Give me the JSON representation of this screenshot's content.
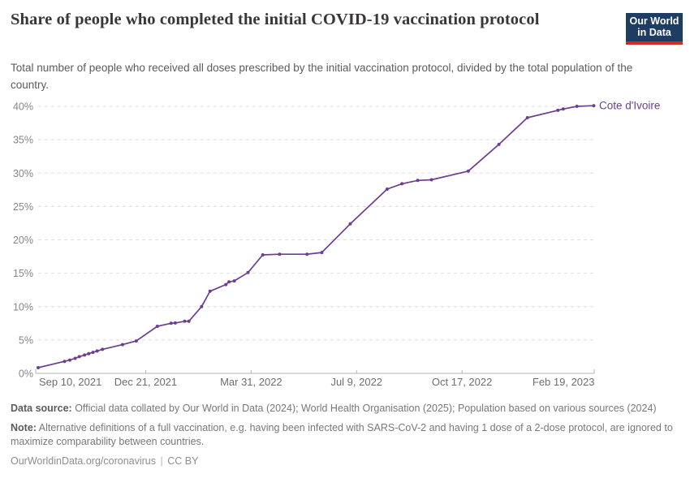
{
  "header": {
    "title": "Share of people who completed the initial COVID-19 vaccination protocol",
    "subtitle": "Total number of people who received all doses prescribed by the initial vaccination protocol, divided by the total population of the country.",
    "logo": {
      "line1": "Our World",
      "line2": "in Data",
      "bg_color": "#1d3d63",
      "accent_color": "#d42b21"
    }
  },
  "chart_data": {
    "type": "line",
    "title": "Share of people who completed the initial COVID-19 vaccination protocol",
    "x_axis": {
      "range_dates": [
        "2021-09-10",
        "2023-02-19"
      ],
      "ticks": [
        {
          "label": "Sep 10, 2021",
          "date": "2021-09-10"
        },
        {
          "label": "Dec 21, 2021",
          "date": "2021-12-21"
        },
        {
          "label": "Mar 31, 2022",
          "date": "2022-03-31"
        },
        {
          "label": "Jul 9, 2022",
          "date": "2022-07-09"
        },
        {
          "label": "Oct 17, 2022",
          "date": "2022-10-17"
        },
        {
          "label": "Feb 19, 2023",
          "date": "2023-02-19"
        }
      ]
    },
    "y_axis": {
      "range": [
        0,
        40
      ],
      "ticks": [
        "0%",
        "5%",
        "10%",
        "15%",
        "20%",
        "25%",
        "30%",
        "35%",
        "40%"
      ],
      "grid": "dashed"
    },
    "series": [
      {
        "name": "Cote d'Ivoire",
        "color": "#6d3e91",
        "points": [
          [
            "2021-09-10",
            0.85
          ],
          [
            "2021-10-05",
            1.8
          ],
          [
            "2021-10-10",
            2.0
          ],
          [
            "2021-10-15",
            2.25
          ],
          [
            "2021-10-19",
            2.5
          ],
          [
            "2021-10-24",
            2.75
          ],
          [
            "2021-10-28",
            2.95
          ],
          [
            "2021-11-01",
            3.15
          ],
          [
            "2021-11-05",
            3.35
          ],
          [
            "2021-11-10",
            3.6
          ],
          [
            "2021-11-29",
            4.3
          ],
          [
            "2021-12-12",
            4.85
          ],
          [
            "2022-01-01",
            7.05
          ],
          [
            "2022-01-14",
            7.5
          ],
          [
            "2022-01-18",
            7.55
          ],
          [
            "2022-01-27",
            7.8
          ],
          [
            "2022-01-31",
            7.8
          ],
          [
            "2022-02-12",
            10.0
          ],
          [
            "2022-02-20",
            12.3
          ],
          [
            "2022-03-07",
            13.3
          ],
          [
            "2022-03-10",
            13.7
          ],
          [
            "2022-03-15",
            13.85
          ],
          [
            "2022-03-28",
            15.1
          ],
          [
            "2022-04-11",
            17.75
          ],
          [
            "2022-04-27",
            17.85
          ],
          [
            "2022-05-23",
            17.85
          ],
          [
            "2022-06-06",
            18.1
          ],
          [
            "2022-07-03",
            22.4
          ],
          [
            "2022-08-07",
            27.6
          ],
          [
            "2022-08-21",
            28.4
          ],
          [
            "2022-09-05",
            28.9
          ],
          [
            "2022-09-18",
            29.0
          ],
          [
            "2022-10-23",
            30.3
          ],
          [
            "2022-11-21",
            34.3
          ],
          [
            "2022-12-18",
            38.3
          ],
          [
            "2023-01-16",
            39.4
          ],
          [
            "2023-01-21",
            39.6
          ],
          [
            "2023-02-03",
            40.0
          ],
          [
            "2023-02-19",
            40.1
          ]
        ]
      }
    ],
    "legend_position": "end-of-line",
    "colors": {
      "line": "#6d3e91",
      "grid": "#dddddd",
      "axis": "#b3b3b3",
      "y_label": "#858585",
      "x_label": "#6e6e6e"
    }
  },
  "footer": {
    "data_source_label": "Data source:",
    "data_source_text": " Official data collated by Our World in Data (2024); World Health Organisation (2025); Population based on various sources (2024)",
    "note_label": "Note:",
    "note_text": " Alternative definitions of a full vaccination, e.g. having been infected with SARS-CoV-2 and having 1 dose of a 2-dose protocol, are ignored to maximize comparability between countries.",
    "link": "OurWorldinData.org/coronavirus",
    "separator": "|",
    "license": "CC BY"
  }
}
